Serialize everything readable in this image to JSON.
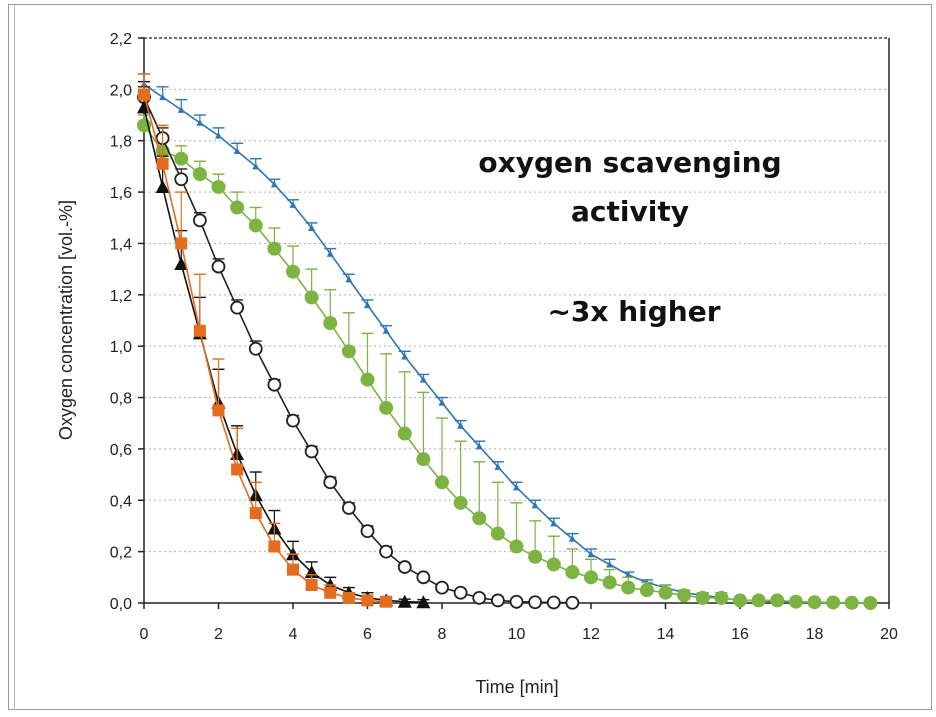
{
  "chart_data": {
    "type": "line",
    "xlabel": "Time [min]",
    "ylabel": "Oxygen concentration [vol.-%]",
    "xlim": [
      0,
      20
    ],
    "ylim": [
      0,
      2.2
    ],
    "x_ticks": [
      "0",
      "2",
      "4",
      "6",
      "8",
      "10",
      "12",
      "14",
      "16",
      "18",
      "20"
    ],
    "y_ticks": [
      "0,0",
      "0,2",
      "0,4",
      "0,6",
      "0,8",
      "1,0",
      "1,2",
      "1,4",
      "1,6",
      "1,8",
      "2,0",
      "2,2"
    ],
    "grid": true,
    "annotations": [
      "oxygen scavenging",
      "activity",
      "~3x higher"
    ],
    "series": [
      {
        "color": "#2e75b6",
        "marker": "small-triangle",
        "x": [
          0,
          0.5,
          1,
          1.5,
          2,
          2.5,
          3,
          3.5,
          4,
          4.5,
          5,
          5.5,
          6,
          6.5,
          7,
          7.5,
          8,
          8.5,
          9,
          9.5,
          10,
          10.5,
          11,
          11.5,
          12,
          12.5,
          13,
          13.5,
          14,
          14.5,
          15,
          15.5,
          16,
          16.5,
          17,
          17.5,
          18,
          18.5,
          19,
          19.5
        ],
        "y": [
          2.02,
          1.97,
          1.92,
          1.87,
          1.82,
          1.76,
          1.7,
          1.63,
          1.55,
          1.46,
          1.36,
          1.26,
          1.16,
          1.06,
          0.96,
          0.87,
          0.78,
          0.69,
          0.61,
          0.53,
          0.45,
          0.38,
          0.31,
          0.25,
          0.19,
          0.15,
          0.11,
          0.08,
          0.06,
          0.04,
          0.03,
          0.02,
          0.01,
          0.01,
          0.005,
          0.003,
          0.002,
          0.001,
          0.0,
          0.0
        ],
        "err": [
          0.04,
          0.04,
          0.04,
          0.03,
          0.03,
          0.03,
          0.03,
          0.02,
          0.02,
          0.02,
          0.02,
          0.02,
          0.02,
          0.02,
          0.02,
          0.02,
          0.02,
          0.02,
          0.02,
          0.02,
          0.02,
          0.02,
          0.02,
          0.02,
          0.02,
          0.02,
          0.01,
          0.01,
          0.01,
          0.01,
          0.01,
          0.01,
          0.01,
          0.01,
          0.01,
          0.01,
          0.01,
          0.01,
          0.01,
          0.01
        ]
      },
      {
        "color": "#7cb342",
        "marker": "filled-circle",
        "x": [
          0,
          0.5,
          1,
          1.5,
          2,
          2.5,
          3,
          3.5,
          4,
          4.5,
          5,
          5.5,
          6,
          6.5,
          7,
          7.5,
          8,
          8.5,
          9,
          9.5,
          10,
          10.5,
          11,
          11.5,
          12,
          12.5,
          13,
          13.5,
          14,
          14.5,
          15,
          15.5,
          16,
          16.5,
          17,
          17.5,
          18,
          18.5,
          19,
          19.5
        ],
        "y": [
          1.86,
          1.76,
          1.73,
          1.67,
          1.62,
          1.54,
          1.47,
          1.38,
          1.29,
          1.19,
          1.09,
          0.98,
          0.87,
          0.76,
          0.66,
          0.56,
          0.47,
          0.39,
          0.33,
          0.27,
          0.22,
          0.18,
          0.15,
          0.12,
          0.1,
          0.08,
          0.06,
          0.05,
          0.04,
          0.03,
          0.02,
          0.02,
          0.01,
          0.01,
          0.01,
          0.005,
          0.003,
          0.002,
          0.001,
          0.0
        ],
        "err": [
          0.04,
          0.05,
          0.05,
          0.05,
          0.05,
          0.06,
          0.07,
          0.08,
          0.1,
          0.11,
          0.13,
          0.15,
          0.18,
          0.21,
          0.24,
          0.26,
          0.25,
          0.24,
          0.22,
          0.2,
          0.17,
          0.14,
          0.11,
          0.09,
          0.07,
          0.05,
          0.04,
          0.03,
          0.03,
          0.02,
          0.02,
          0.02,
          0.01,
          0.01,
          0.01,
          0.01,
          0.01,
          0.01,
          0.01,
          0.01
        ]
      },
      {
        "color": "#222222",
        "marker": "open-circle",
        "x": [
          0,
          0.5,
          1,
          1.5,
          2,
          2.5,
          3,
          3.5,
          4,
          4.5,
          5,
          5.5,
          6,
          6.5,
          7,
          7.5,
          8,
          8.5,
          9,
          9.5,
          10,
          10.5,
          11,
          11.5
        ],
        "y": [
          1.97,
          1.81,
          1.65,
          1.49,
          1.31,
          1.15,
          0.99,
          0.85,
          0.71,
          0.59,
          0.47,
          0.37,
          0.28,
          0.2,
          0.14,
          0.1,
          0.06,
          0.04,
          0.02,
          0.01,
          0.005,
          0.003,
          0.002,
          0.001
        ],
        "err": [
          0.04,
          0.04,
          0.04,
          0.03,
          0.03,
          0.03,
          0.03,
          0.02,
          0.02,
          0.02,
          0.02,
          0.02,
          0.02,
          0.02,
          0.01,
          0.01,
          0.01,
          0.01,
          0.01,
          0.01,
          0.01,
          0.01,
          0.01,
          0.01
        ]
      },
      {
        "color": "#111111",
        "marker": "filled-triangle",
        "x": [
          0,
          0.5,
          1,
          1.5,
          2,
          2.5,
          3,
          3.5,
          4,
          4.5,
          5,
          5.5,
          6,
          6.5,
          7,
          7.5
        ],
        "y": [
          1.93,
          1.62,
          1.32,
          1.05,
          0.78,
          0.58,
          0.42,
          0.29,
          0.19,
          0.12,
          0.07,
          0.04,
          0.02,
          0.01,
          0.005,
          0.003
        ],
        "err": [
          0.1,
          0.12,
          0.13,
          0.14,
          0.13,
          0.11,
          0.09,
          0.07,
          0.05,
          0.04,
          0.03,
          0.02,
          0.02,
          0.01,
          0.01,
          0.01
        ]
      },
      {
        "color": "#e36c1e",
        "marker": "filled-square",
        "x": [
          0,
          0.5,
          1,
          1.5,
          2,
          2.5,
          3,
          3.5,
          4,
          4.5,
          5,
          5.5,
          6,
          6.5
        ],
        "y": [
          1.98,
          1.71,
          1.4,
          1.06,
          0.75,
          0.52,
          0.35,
          0.22,
          0.13,
          0.07,
          0.04,
          0.02,
          0.01,
          0.005
        ],
        "err": [
          0.08,
          0.15,
          0.2,
          0.22,
          0.2,
          0.16,
          0.12,
          0.09,
          0.06,
          0.04,
          0.03,
          0.02,
          0.01,
          0.01
        ]
      }
    ]
  }
}
